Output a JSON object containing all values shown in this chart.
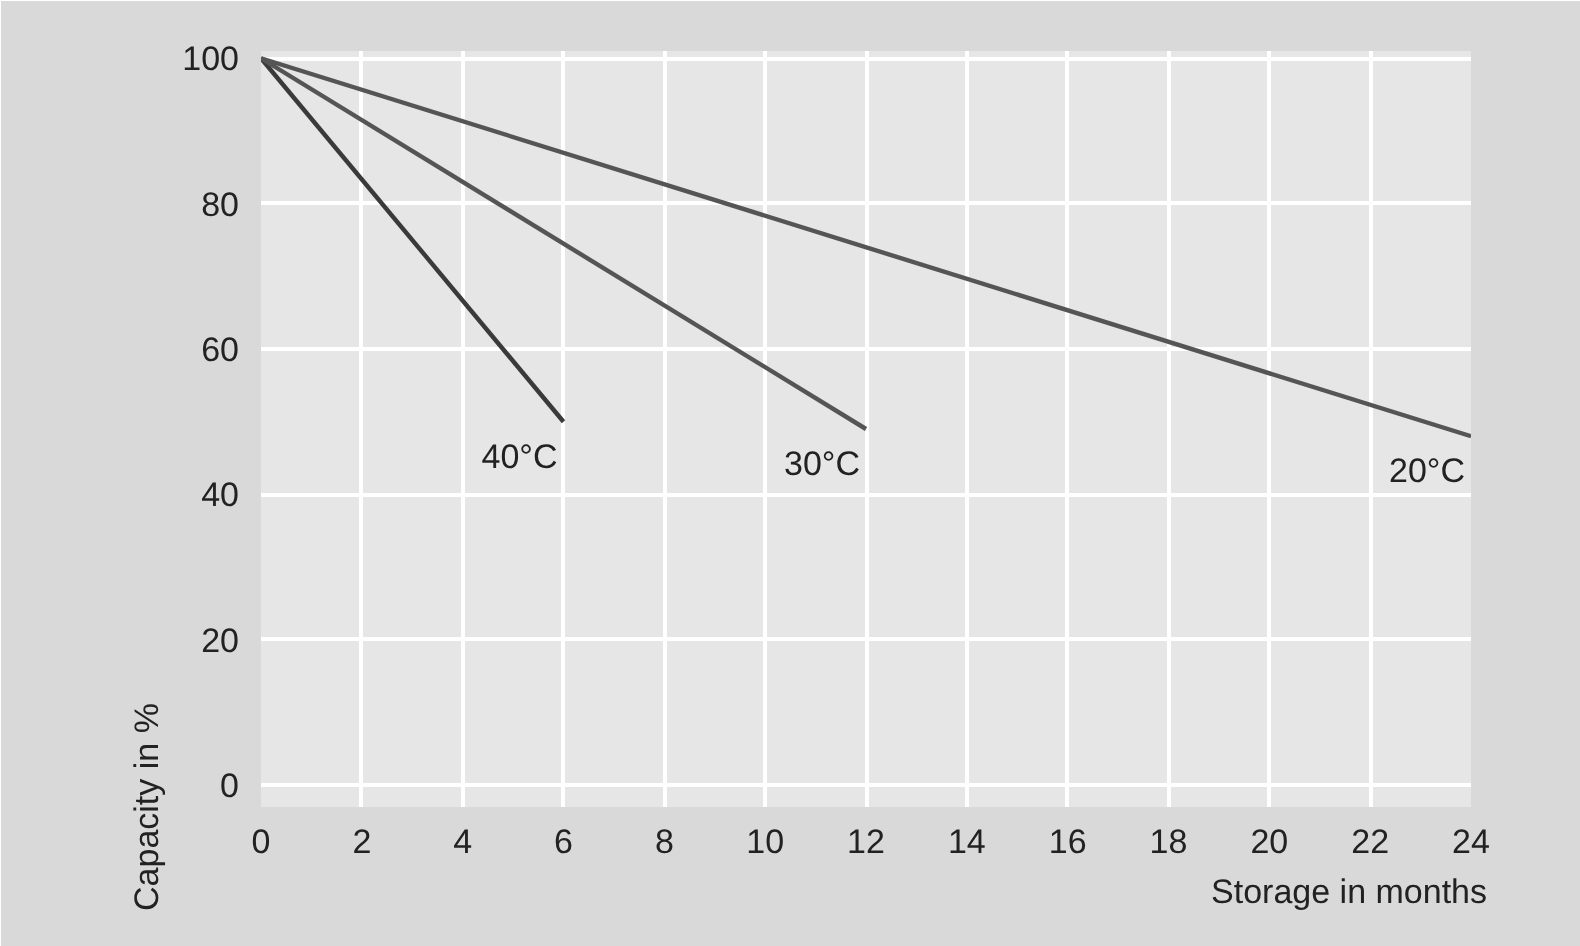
{
  "chart_data": {
    "type": "line",
    "xlabel": "Storage in months",
    "ylabel": "Capacity in %",
    "xlim": [
      0,
      24
    ],
    "ylim": [
      -3,
      101
    ],
    "xticks": [
      0,
      2,
      4,
      6,
      8,
      10,
      12,
      14,
      16,
      18,
      20,
      22,
      24
    ],
    "yticks": [
      0,
      20,
      40,
      60,
      80,
      100
    ],
    "grid": true,
    "marker": "none",
    "line_style": "solid",
    "series": [
      {
        "name": "40°C",
        "color": "#3a3a3a",
        "x": [
          0,
          6
        ],
        "values": [
          100,
          50
        ]
      },
      {
        "name": "30°C",
        "color": "#555555",
        "x": [
          0,
          12
        ],
        "values": [
          100,
          49
        ]
      },
      {
        "name": "20°C",
        "color": "#555555",
        "x": [
          0,
          24
        ],
        "values": [
          100,
          48
        ]
      }
    ]
  }
}
